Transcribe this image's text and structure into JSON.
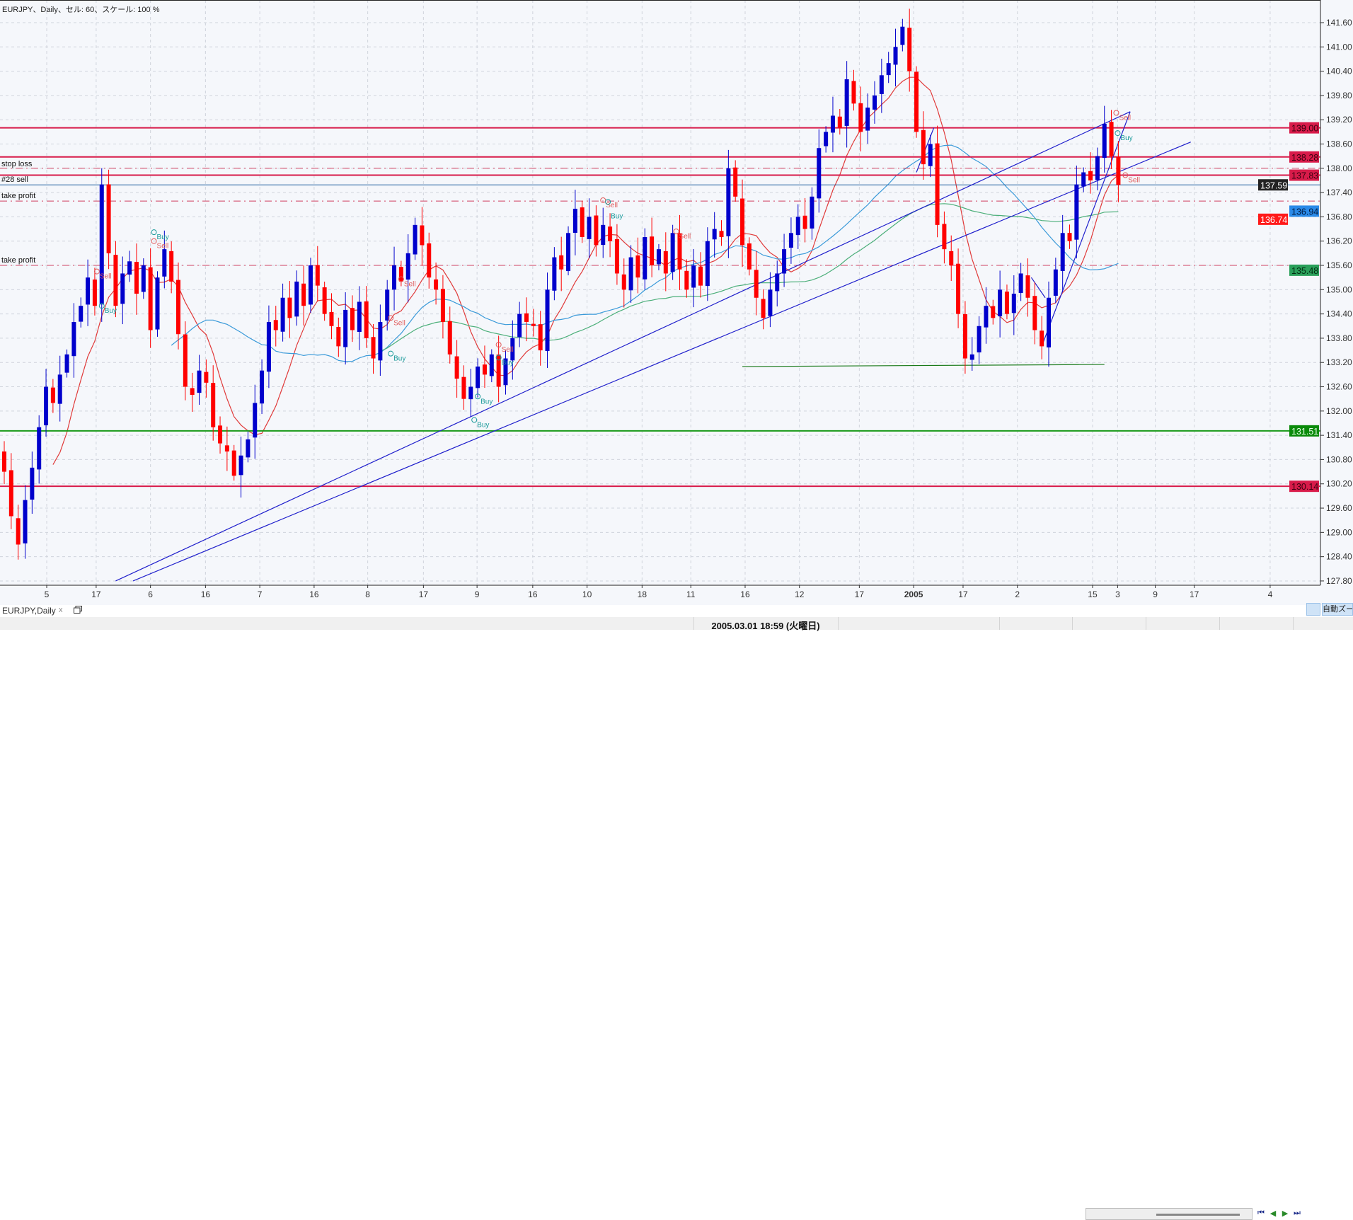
{
  "header": {
    "title": "EURJPY、Daily、セル: 60、スケール: 100 %"
  },
  "levels_labels": {
    "stop_loss": "stop loss",
    "order": "#28 sell",
    "take_profit_1": "take profit",
    "take_profit_2": "take profit"
  },
  "tab": {
    "label": "EURJPY,Daily",
    "close": "x"
  },
  "autozoom": {
    "label": "自動ズーム"
  },
  "nav": {
    "first": "⏮",
    "prev": "◀",
    "next": "▶",
    "last": "⏭"
  },
  "status": {
    "datetime": "2005.03.01 18:59 (火曜日)"
  },
  "colors": {
    "up": "#0000cc",
    "down": "#ff0000",
    "ma_fast": "#e03a3a",
    "ma_mid": "#3a9ad9",
    "ma_slow": "#4caf7a",
    "trend": "#2020cc",
    "buy": "#1a9a9a",
    "sell": "#e05a5a"
  },
  "chart_data": {
    "type": "candlestick",
    "symbol": "EURJPY",
    "timeframe": "Daily",
    "ylim": [
      127.8,
      141.6
    ],
    "y_ticks": [
      "141.60",
      "141.00",
      "140.40",
      "139.80",
      "139.20",
      "138.60",
      "138.00",
      "137.40",
      "136.80",
      "136.20",
      "135.60",
      "135.00",
      "134.40",
      "133.80",
      "133.20",
      "132.60",
      "132.00",
      "131.40",
      "130.80",
      "130.20",
      "129.60",
      "129.00",
      "128.40",
      "127.80"
    ],
    "x_ticks": [
      {
        "label": "5",
        "bar": 6.1
      },
      {
        "label": "17",
        "bar": 13.2
      },
      {
        "label": "6",
        "bar": 21.0
      },
      {
        "label": "16",
        "bar": 28.9
      },
      {
        "label": "7",
        "bar": 36.7
      },
      {
        "label": "16",
        "bar": 44.5
      },
      {
        "label": "8",
        "bar": 52.2
      },
      {
        "label": "17",
        "bar": 60.2
      },
      {
        "label": "9",
        "bar": 67.9
      },
      {
        "label": "16",
        "bar": 75.9
      },
      {
        "label": "10",
        "bar": 83.7
      },
      {
        "label": "18",
        "bar": 91.6
      },
      {
        "label": "11",
        "bar": 98.6
      },
      {
        "label": "16",
        "bar": 106.4
      },
      {
        "label": "12",
        "bar": 114.2
      },
      {
        "label": "17",
        "bar": 122.8
      },
      {
        "label": "2005",
        "bar": 130.6,
        "bold": true
      },
      {
        "label": "17",
        "bar": 137.7
      },
      {
        "label": "2",
        "bar": 145.5
      },
      {
        "label": "15",
        "bar": 156.3
      },
      {
        "label": "3",
        "bar": 159.9
      },
      {
        "label": "9",
        "bar": 165.3
      },
      {
        "label": "17",
        "bar": 170.9
      },
      {
        "label": "4",
        "bar": 181.8
      }
    ],
    "closes": [
      130.5,
      129.4,
      128.7,
      129.8,
      130.6,
      131.6,
      132.6,
      132.2,
      132.9,
      133.4,
      134.2,
      134.6,
      135.3,
      134.6,
      137.6,
      135.9,
      134.6,
      135.4,
      135.7,
      134.9,
      135.6,
      134.0,
      135.3,
      136.0,
      135.2,
      133.9,
      132.6,
      132.4,
      133.0,
      132.7,
      131.6,
      131.2,
      131.0,
      130.4,
      130.9,
      131.3,
      132.2,
      133.0,
      134.2,
      134.0,
      134.8,
      134.3,
      135.2,
      134.6,
      135.6,
      135.1,
      134.4,
      134.1,
      133.6,
      134.5,
      134.0,
      134.7,
      133.8,
      133.3,
      134.2,
      135.0,
      135.6,
      135.2,
      135.9,
      136.6,
      136.1,
      135.3,
      135.0,
      134.2,
      133.4,
      132.8,
      132.3,
      132.6,
      133.1,
      132.9,
      133.4,
      132.6,
      133.3,
      133.8,
      134.4,
      134.2,
      134.1,
      133.5,
      135.0,
      135.8,
      135.5,
      136.4,
      137.0,
      136.3,
      136.8,
      136.1,
      136.6,
      136.2,
      135.4,
      135.0,
      135.8,
      135.3,
      136.3,
      135.6,
      136.0,
      135.4,
      136.4,
      135.5,
      135.0,
      135.6,
      135.1,
      136.2,
      136.5,
      136.3,
      138.0,
      137.3,
      136.1,
      135.5,
      134.8,
      134.3,
      135.0,
      135.4,
      136.0,
      136.4,
      136.8,
      136.5,
      137.3,
      138.5,
      138.9,
      139.3,
      139.0,
      140.2,
      139.6,
      138.9,
      139.5,
      139.8,
      140.3,
      140.6,
      141.0,
      141.5,
      140.4,
      138.9,
      138.1,
      138.6,
      136.6,
      136.0,
      135.6,
      134.4,
      133.3,
      133.4,
      134.1,
      134.6,
      134.3,
      135.0,
      134.4,
      134.9,
      135.4,
      134.8,
      134.0,
      133.6,
      134.8,
      135.5,
      136.4,
      136.2,
      137.6,
      137.9,
      137.7,
      138.3,
      139.1,
      138.3,
      137.59
    ],
    "moving_averages": [
      {
        "name": "fast",
        "period": 8,
        "color_key": "ma_fast",
        "last": "136.74"
      },
      {
        "name": "mid",
        "period": 25,
        "color_key": "ma_mid",
        "last": "136.94"
      },
      {
        "name": "slow",
        "period": 55,
        "color_key": "ma_slow",
        "last": "135.48"
      }
    ],
    "levels": [
      {
        "name": "resistance",
        "price": 139.0,
        "style": "solid",
        "color": "#d81b4a",
        "tag": "139.00",
        "tag_bg": "#d81b4a",
        "tag_fg": "#3a0010"
      },
      {
        "name": "stop-loss",
        "price": 138.28,
        "style": "solid",
        "color": "#d81b4a",
        "tag": "138.28",
        "tag_bg": "#d81b4a",
        "tag_fg": "#3a0010"
      },
      {
        "name": "stop-loss-dashed",
        "price": 138.0,
        "style": "dash",
        "color": "#d04060"
      },
      {
        "name": "order-sell",
        "price": 137.83,
        "style": "solid",
        "color": "#d81b4a",
        "tag": "137.83",
        "tag_bg": "#d81b4a",
        "tag_fg": "#3a0010"
      },
      {
        "name": "current-price",
        "price": 137.59,
        "style": "thin",
        "color": "#2060a0",
        "tag": "137.59",
        "tag_bg": "#222222",
        "tag_fg": "#ffffff"
      },
      {
        "name": "take-profit-1",
        "price": 137.19,
        "style": "dash",
        "color": "#d04060"
      },
      {
        "name": "take-profit-2",
        "price": 135.6,
        "style": "dash",
        "color": "#d04060"
      },
      {
        "name": "support-green",
        "price": 131.51,
        "style": "solid",
        "color": "#1a9a1a",
        "tag": "131.51",
        "tag_bg": "#0a8a0a",
        "tag_fg": "#e8ffe8"
      },
      {
        "name": "support-red",
        "price": 130.14,
        "style": "solid",
        "color": "#d81b4a",
        "tag": "130.14",
        "tag_bg": "#d81b4a",
        "tag_fg": "#3a0010"
      }
    ],
    "ma_tags": [
      {
        "price": 136.94,
        "tag": "136.94",
        "bg": "#2a8ae8",
        "fg": "#001a40"
      },
      {
        "price": 136.74,
        "tag": "136.74",
        "bg": "#ff1a1a",
        "fg": "#ffffff"
      },
      {
        "price": 135.48,
        "tag": "135.48",
        "bg": "#2aa05a",
        "fg": "#002a10"
      }
    ],
    "trendlines": [
      {
        "from": [
          16,
          127.8
        ],
        "to": [
          161.7,
          139.4
        ],
        "color": "#2020cc"
      },
      {
        "from": [
          18.5,
          127.8
        ],
        "to": [
          170.4,
          138.65
        ],
        "color": "#2020cc"
      },
      {
        "from": [
          149,
          133.6
        ],
        "to": [
          161.7,
          139.4
        ],
        "color": "#2020cc"
      },
      {
        "from": [
          131,
          137.9
        ],
        "to": [
          133.5,
          139.0
        ],
        "color": "#2020cc"
      },
      {
        "from": [
          147.5,
          135.3
        ],
        "to": [
          149.5,
          134.8
        ],
        "color": "#2020cc"
      },
      {
        "from": [
          106,
          133.1
        ],
        "to": [
          158,
          133.15
        ],
        "color": "#1a7a1a"
      }
    ],
    "markers": [
      {
        "label": "Sell",
        "bar": 13.3,
        "price": 135.38,
        "side": "sell"
      },
      {
        "label": "Buy",
        "bar": 14,
        "price": 134.53,
        "side": "buy"
      },
      {
        "label": "Buy",
        "bar": 21.5,
        "price": 136.35,
        "side": "buy"
      },
      {
        "label": "Sell",
        "bar": 21.5,
        "price": 136.13,
        "side": "sell"
      },
      {
        "label": "Sell",
        "bar": 57,
        "price": 135.19,
        "side": "sell"
      },
      {
        "label": "Sell",
        "bar": 55.5,
        "price": 134.23,
        "side": "sell"
      },
      {
        "label": "Buy",
        "bar": 55.5,
        "price": 133.35,
        "side": "buy"
      },
      {
        "label": "Sell",
        "bar": 71,
        "price": 133.57,
        "side": "sell"
      },
      {
        "label": "Buy",
        "bar": 71,
        "price": 133.25,
        "side": "buy"
      },
      {
        "label": "Buy",
        "bar": 68,
        "price": 132.29,
        "side": "buy"
      },
      {
        "label": "Buy",
        "bar": 67.5,
        "price": 131.71,
        "side": "buy"
      },
      {
        "label": "Sell",
        "bar": 86,
        "price": 137.14,
        "side": "sell"
      },
      {
        "label": "Buy",
        "bar": 86.7,
        "price": 137.1,
        "side": "buy"
      },
      {
        "label": "Sell",
        "bar": 96.5,
        "price": 136.37,
        "side": "sell"
      },
      {
        "label": "Sell",
        "bar": 159.7,
        "price": 139.3,
        "side": "sell"
      },
      {
        "label": "Buy",
        "bar": 159.9,
        "price": 138.8,
        "side": "buy"
      },
      {
        "label": "Sell",
        "bar": 161,
        "price": 137.76,
        "side": "sell"
      }
    ]
  }
}
